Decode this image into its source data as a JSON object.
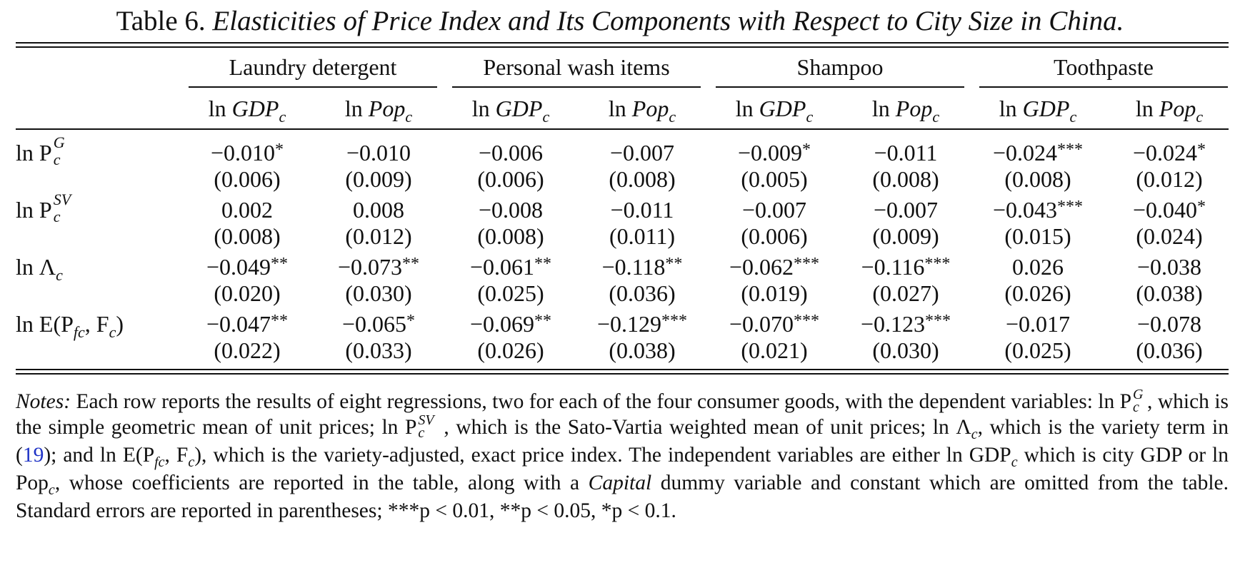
{
  "caption": {
    "label": "Table 6.",
    "title": "Elasticities of Price Index and Its Components with Respect to City Size in China."
  },
  "table": {
    "groups": [
      "Laundry detergent",
      "Personal wash items",
      "Shampoo",
      "Toothpaste"
    ],
    "subheaders": [
      "GDP",
      "Pop"
    ],
    "subheader_prefix": "ln",
    "subheader_subscript": "c",
    "rows": [
      {
        "label_prefix": "ln P",
        "label_sup": "G",
        "label_sub": "c",
        "coef": [
          "−0.010",
          "−0.010",
          "−0.006",
          "−0.007",
          "−0.009",
          "−0.011",
          "−0.024",
          "−0.024"
        ],
        "stars": [
          "*",
          "",
          "",
          "",
          "*",
          "",
          "***",
          "*"
        ],
        "se": [
          "(0.006)",
          "(0.009)",
          "(0.006)",
          "(0.008)",
          "(0.005)",
          "(0.008)",
          "(0.008)",
          "(0.012)"
        ]
      },
      {
        "label_prefix": "ln P",
        "label_sup": "SV",
        "label_sub": "c",
        "coef": [
          "0.002",
          "0.008",
          "−0.008",
          "−0.011",
          "−0.007",
          "−0.007",
          "−0.043",
          "−0.040"
        ],
        "stars": [
          "",
          "",
          "",
          "",
          "",
          "",
          "***",
          "*"
        ],
        "se": [
          "(0.008)",
          "(0.012)",
          "(0.008)",
          "(0.011)",
          "(0.006)",
          "(0.009)",
          "(0.015)",
          "(0.024)"
        ]
      },
      {
        "label_prefix": "ln Λ",
        "label_sup": "",
        "label_sub": "c",
        "coef": [
          "−0.049",
          "−0.073",
          "−0.061",
          "−0.118",
          "−0.062",
          "−0.116",
          "0.026",
          "−0.038"
        ],
        "stars": [
          "**",
          "**",
          "**",
          "**",
          "***",
          "***",
          "",
          ""
        ],
        "se": [
          "(0.020)",
          "(0.030)",
          "(0.025)",
          "(0.036)",
          "(0.019)",
          "(0.027)",
          "(0.026)",
          "(0.038)"
        ]
      },
      {
        "label_prefix": "ln E(P",
        "label_mid_sub": "fc",
        "label_mid": ", F",
        "label_sub": "c",
        "label_suffix": ")",
        "coef": [
          "−0.047",
          "−0.065",
          "−0.069",
          "−0.129",
          "−0.070",
          "−0.123",
          "−0.017",
          "−0.078"
        ],
        "stars": [
          "**",
          "*",
          "**",
          "***",
          "***",
          "***",
          "",
          ""
        ],
        "se": [
          "(0.022)",
          "(0.033)",
          "(0.026)",
          "(0.038)",
          "(0.021)",
          "(0.030)",
          "(0.025)",
          "(0.036)"
        ]
      }
    ]
  },
  "notes": {
    "label": "Notes:",
    "p1": "Each row reports the results of eight regressions, two for each of the four consumer goods, with the dependent variables: ln P",
    "p1_sup": "G",
    "p1_sub": "c",
    "p2": ", which is the simple geometric mean of unit prices; ln P",
    "p2_sup": "SV",
    "p2_sub": "c",
    "p3": ", which is the Sato-Vartia weighted mean of unit prices; ln Λ",
    "p3_sub": "c",
    "p4": ", which is the variety term in (",
    "ref": "19",
    "p5": "); and ln E(P",
    "p5_sub": "fc",
    "p6": ", F",
    "p6_sub": "c",
    "p7": "), which is the variety-adjusted, exact price index. The independent variables are either ln GDP",
    "p7_sub": "c",
    "p8": " which is city GDP or ln Pop",
    "p8_sub": "c",
    "p9": ", whose coefficients are reported in the table, along with a ",
    "p9_em": "Capital",
    "p10": " dummy variable and constant which are omitted from the table. Standard errors are reported in parentheses; ***p < 0.01, **p < 0.05, *p < 0.1."
  }
}
